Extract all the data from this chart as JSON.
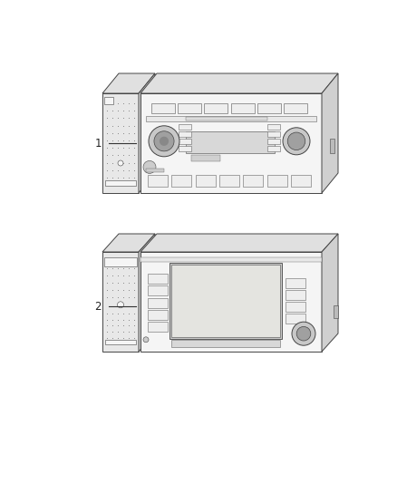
{
  "bg_color": "#ffffff",
  "label1": "1",
  "label2": "2",
  "lc": "#444444",
  "lc_thin": "#666666",
  "face_light": "#f5f5f5",
  "face_mid": "#e8e8e8",
  "face_dark": "#d8d8d8",
  "side_color": "#d0d0d0",
  "top_color": "#e0e0e0",
  "grille_color": "#888888",
  "knob_outer": "#bbbbbb",
  "knob_inner": "#999999",
  "screen_color": "#e0e0dc",
  "btn_color": "#eeeeee",
  "btn_edge": "#555555"
}
